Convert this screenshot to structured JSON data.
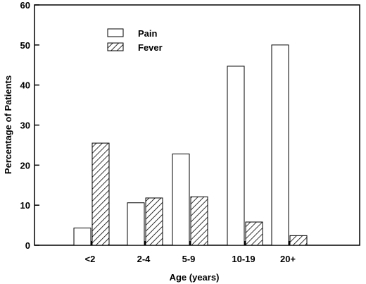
{
  "chart_data": {
    "type": "bar",
    "categories": [
      "<2",
      "2-4",
      "5-9",
      "10-19",
      "20+"
    ],
    "series": [
      {
        "name": "Pain",
        "values": [
          4.3,
          10.6,
          22.8,
          44.7,
          50.0
        ],
        "pattern": "solid",
        "fill": "#ffffff"
      },
      {
        "name": "Fever",
        "values": [
          25.5,
          11.8,
          12.1,
          5.8,
          2.4
        ],
        "pattern": "hatched",
        "fill": "#ffffff"
      }
    ],
    "xlabel": "Age (years)",
    "ylabel": "Percentage of Patients",
    "ylim": [
      0,
      60
    ],
    "yticks": [
      "0",
      "10",
      "20",
      "30",
      "40",
      "50",
      "60"
    ],
    "grid": false,
    "legend_position": "top-left"
  }
}
